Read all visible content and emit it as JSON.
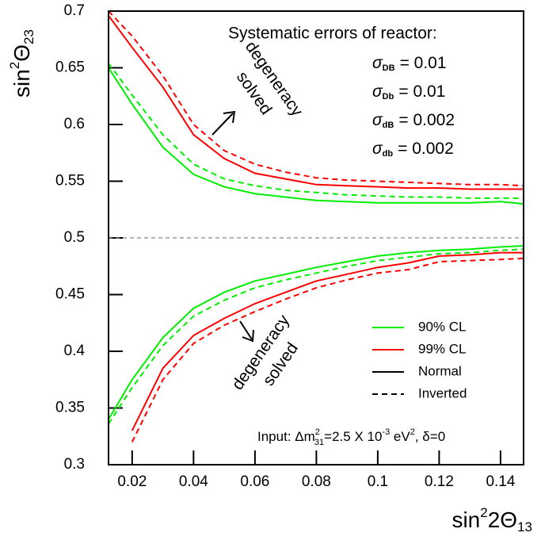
{
  "chart_data": {
    "type": "line",
    "x_label": {
      "base": "sin",
      "sup": "2",
      "main": "2Θ",
      "sub": "13"
    },
    "y_label": {
      "base": "sin",
      "sup": "2",
      "main": "Θ",
      "sub": "23"
    },
    "x": [
      0.0123,
      0.02,
      0.03,
      0.04,
      0.05,
      0.06,
      0.07,
      0.08,
      0.09,
      0.1,
      0.11,
      0.12,
      0.13,
      0.14,
      0.1475
    ],
    "series": [
      {
        "color": "#ff0000",
        "dash": false,
        "values": [
          0.696,
          0.668,
          0.633,
          0.591,
          0.57,
          0.557,
          0.552,
          0.547,
          0.546,
          0.545,
          0.544,
          0.544,
          0.543,
          0.543,
          0.543
        ]
      },
      {
        "color": "#ff0000",
        "dash": true,
        "values": [
          0.7,
          0.678,
          0.643,
          0.6,
          0.577,
          0.565,
          0.558,
          0.553,
          0.551,
          0.55,
          0.549,
          0.548,
          0.547,
          0.547,
          0.546
        ]
      },
      {
        "color": "#00ee00",
        "dash": false,
        "values": [
          0.65,
          0.618,
          0.58,
          0.556,
          0.545,
          0.539,
          0.536,
          0.533,
          0.532,
          0.531,
          0.531,
          0.531,
          0.531,
          0.532,
          0.53
        ]
      },
      {
        "color": "#00ee00",
        "dash": true,
        "values": [
          0.654,
          0.626,
          0.591,
          0.565,
          0.552,
          0.546,
          0.542,
          0.54,
          0.538,
          0.537,
          0.536,
          0.536,
          0.535,
          0.535,
          0.535
        ]
      },
      {
        "color": "#00ee00",
        "dash": false,
        "values": [
          0.34,
          0.375,
          0.412,
          0.438,
          0.452,
          0.462,
          0.468,
          0.474,
          0.479,
          0.484,
          0.487,
          0.489,
          0.49,
          0.492,
          0.493
        ]
      },
      {
        "color": "#00ee00",
        "dash": true,
        "values": [
          0.336,
          0.368,
          0.405,
          0.431,
          0.445,
          0.456,
          0.463,
          0.469,
          0.475,
          0.48,
          0.483,
          0.486,
          0.487,
          0.489,
          0.49
        ]
      },
      {
        "color": "#ff0000",
        "dash": false,
        "values": [
          null,
          0.33,
          0.385,
          0.414,
          0.429,
          0.442,
          0.452,
          0.462,
          0.468,
          0.474,
          0.478,
          0.484,
          0.485,
          0.487,
          0.487
        ]
      },
      {
        "color": "#ff0000",
        "dash": true,
        "values": [
          null,
          0.32,
          0.375,
          0.407,
          0.423,
          0.435,
          0.446,
          0.456,
          0.463,
          0.469,
          0.472,
          0.479,
          0.48,
          0.481,
          0.482
        ]
      }
    ],
    "xlim": [
      0.0123,
      0.1475
    ],
    "ylim": [
      0.3,
      0.7
    ],
    "xticks": [
      0.02,
      0.04,
      0.06,
      0.08,
      0.1,
      0.12,
      0.14
    ],
    "yticks": [
      0.3,
      0.35,
      0.4,
      0.45,
      0.5,
      0.55,
      0.6,
      0.65,
      0.7
    ],
    "hline": 0.5,
    "legend": [
      {
        "label": "90% CL",
        "color": "#00ee00",
        "dash": false
      },
      {
        "label": "99% CL",
        "color": "#ff0000",
        "dash": false
      },
      {
        "label": "Normal",
        "color": "#000000",
        "dash": false
      },
      {
        "label": "Inverted",
        "color": "#000000",
        "dash": true
      }
    ],
    "systematics_title": "Systematic errors of reactor:",
    "systematics": [
      {
        "symbol": "σ",
        "sub": "DB",
        "text": "= 0.01"
      },
      {
        "symbol": "σ",
        "sub": "Db",
        "text": "= 0.01"
      },
      {
        "symbol": "σ",
        "sub": "dB",
        "text": "= 0.002"
      },
      {
        "symbol": "σ",
        "sub": "db",
        "text": "= 0.002"
      }
    ],
    "upper_note": [
      "degeneracy",
      "solved"
    ],
    "lower_note": [
      "degeneracy",
      "solved"
    ],
    "input": {
      "a": "Input: Δm",
      "sup1": "2",
      "sub1": "31",
      "b": "=2.5 X 10",
      "sup2": "-3",
      "c": " eV",
      "sup3": "2",
      "d": ", δ=0"
    }
  }
}
